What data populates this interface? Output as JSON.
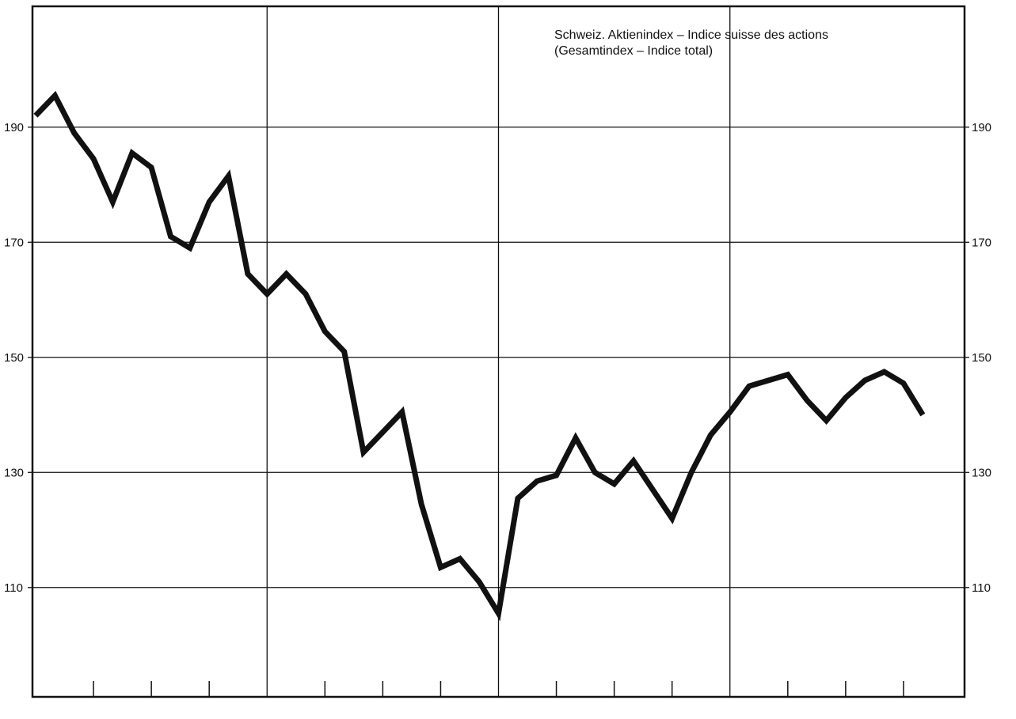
{
  "chart_data": {
    "type": "line",
    "title_line1": "Schweiz. Aktienindex – Indice suisse des actions",
    "title_line2": "(Gesamtindex – Indice total)",
    "ylim": [
      91,
      211
    ],
    "xlim": [
      0,
      48
    ],
    "y_ticks": [
      110,
      130,
      150,
      170,
      190
    ],
    "y_tick_labels_left": [
      "110",
      "130",
      "150",
      "170",
      "190"
    ],
    "y_tick_labels_right": [
      "110",
      "130",
      "150",
      "170",
      "190"
    ],
    "x_major_gridlines": [
      12,
      24,
      36
    ],
    "x_minor_ticks": [
      3,
      6,
      9,
      15,
      18,
      21,
      27,
      30,
      33,
      39,
      42,
      45
    ],
    "grid": true,
    "series": [
      {
        "x": [
          0,
          1,
          2,
          3,
          4,
          5,
          6,
          7,
          8,
          9,
          10,
          11,
          12,
          13,
          14,
          15,
          16,
          17,
          18,
          19,
          20,
          21,
          22,
          23,
          24,
          25,
          26,
          27,
          28,
          29,
          30,
          31,
          32,
          33,
          34,
          35,
          36,
          37,
          38,
          39,
          40,
          41,
          42,
          43,
          44,
          45,
          46
        ],
        "values": [
          192,
          195.5,
          189,
          184.5,
          177,
          185.5,
          183,
          171,
          169,
          177,
          181.5,
          164.5,
          161,
          164.5,
          161,
          154.5,
          151,
          133.5,
          137,
          140.5,
          124.5,
          113.5,
          115,
          111,
          105.5,
          125.5,
          128.5,
          129.5,
          136,
          130,
          128,
          132,
          127,
          122,
          130,
          136.5,
          140.5,
          145,
          146,
          147,
          142.5,
          139,
          143,
          146,
          147.5,
          145.5,
          140
        ]
      }
    ]
  }
}
